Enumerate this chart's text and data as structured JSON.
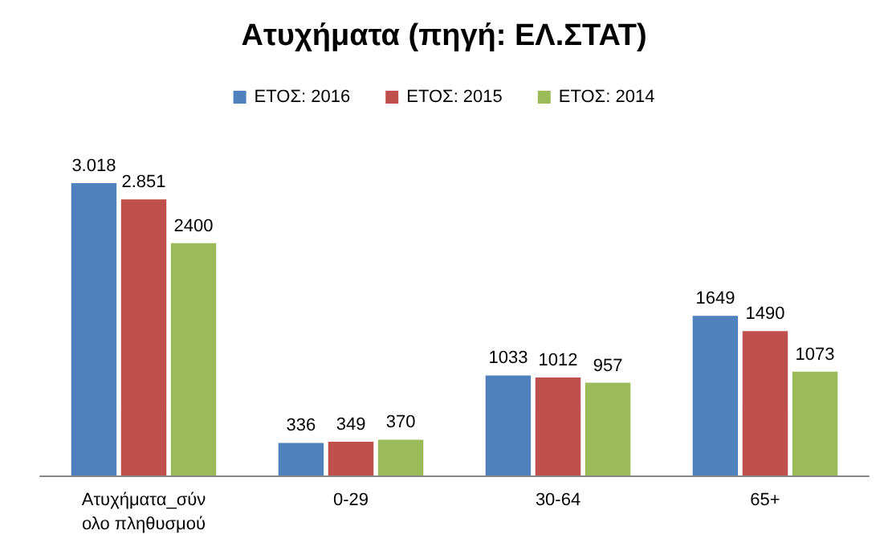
{
  "chart_data": {
    "type": "bar",
    "title": "Ατυχήματα (πηγή: ΕΛ.ΣΤΑΤ)",
    "categories": [
      "Ατυχήματα_σύνολο πληθυσμού",
      "0-29",
      "30-64",
      "65+"
    ],
    "series": [
      {
        "name": "ΕΤΟΣ: 2016",
        "color": "#4f81bd",
        "values": [
          3018,
          336,
          1033,
          1649
        ],
        "value_labels": [
          "3.018",
          "336",
          "1033",
          "1649"
        ]
      },
      {
        "name": "ΕΤΟΣ: 2015",
        "color": "#c0504d",
        "values": [
          2851,
          349,
          1012,
          1490
        ],
        "value_labels": [
          "2.851",
          "349",
          "1012",
          "1490"
        ]
      },
      {
        "name": "ΕΤΟΣ: 2014",
        "color": "#9bbb59",
        "values": [
          2400,
          370,
          957,
          1073
        ],
        "value_labels": [
          "2400",
          "370",
          "957",
          "1073"
        ]
      }
    ],
    "legend": "top"
  }
}
